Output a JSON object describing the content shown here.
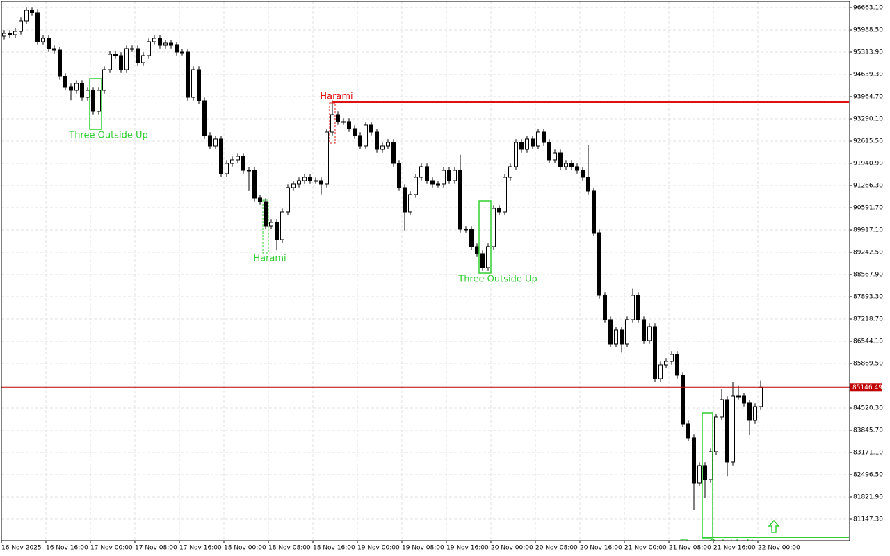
{
  "chart_data": {
    "type": "candlestick",
    "categories": [
      "16 Nov 2025",
      null,
      null,
      null,
      null,
      null,
      null,
      null,
      "16 Nov 16:00",
      null,
      null,
      null,
      null,
      null,
      null,
      null,
      "17 Nov 00:00",
      null,
      null,
      null,
      null,
      null,
      null,
      null,
      "17 Nov 08:00",
      null,
      null,
      null,
      null,
      null,
      null,
      null,
      "17 Nov 16:00",
      null,
      null,
      null,
      null,
      null,
      null,
      null,
      "18 Nov 00:00",
      null,
      null,
      null,
      null,
      null,
      null,
      null,
      "18 Nov 08:00",
      null,
      null,
      null,
      null,
      null,
      null,
      null,
      "18 Nov 16:00",
      null,
      null,
      null,
      null,
      null,
      null,
      null,
      "19 Nov 00:00",
      null,
      null,
      null,
      null,
      null,
      null,
      null,
      "19 Nov 08:00",
      null,
      null,
      null,
      null,
      null,
      null,
      null,
      "19 Nov 16:00",
      null,
      null,
      null,
      null,
      null,
      null,
      null,
      "20 Nov 00:00",
      null,
      null,
      null,
      null,
      null,
      null,
      null,
      "20 Nov 08:00",
      null,
      null,
      null,
      null,
      null,
      null,
      null,
      "20 Nov 16:00",
      null,
      null,
      null,
      null,
      null,
      null,
      null,
      "21 Nov 00:00",
      null,
      null,
      null,
      null,
      null,
      null,
      null,
      "21 Nov 08:00",
      null,
      null,
      null,
      null,
      null,
      null,
      null,
      "21 Nov 16:00",
      null,
      null,
      null,
      null,
      null,
      null,
      null,
      "22 Nov 00:00"
    ],
    "open": [
      95800,
      95883,
      95841,
      95946,
      96263,
      96579,
      96516,
      95630,
      95736,
      95419,
      95377,
      94576,
      94260,
      94155,
      94365,
      93944,
      94155,
      93522,
      94155,
      94787,
      95251,
      95209,
      94787,
      95419,
      95419,
      94998,
      95209,
      95630,
      95736,
      95525,
      95588,
      95525,
      95314,
      95314,
      93944,
      94787,
      93838,
      92784,
      92468,
      92679,
      91625,
      91941,
      92047,
      92152,
      91730,
      91730,
      90887,
      90782,
      90044,
      90149,
      89622,
      90466,
      91203,
      91309,
      91414,
      91520,
      91414,
      91414,
      91309,
      92890,
      93417,
      93206,
      93206,
      92995,
      92784,
      92468,
      93101,
      92890,
      92363,
      92468,
      92574,
      91941,
      91203,
      90466,
      90993,
      91520,
      91836,
      91414,
      91309,
      91309,
      91730,
      91414,
      91730,
      89939,
      89939,
      89412,
      89201,
      88779,
      89412,
      90571,
      90466,
      91520,
      91836,
      92574,
      92363,
      92679,
      92468,
      92890,
      92574,
      92047,
      92257,
      91836,
      91941,
      91836,
      91730,
      91520,
      91098,
      89833,
      87936,
      87198,
      86460,
      86882,
      86460,
      87198,
      87936,
      87198,
      86566,
      86987,
      85406,
      85828,
      85933,
      86144,
      85512,
      84036,
      83615,
      82244,
      82771,
      82350,
      83193,
      84247,
      84774,
      82877,
      84879,
      84879,
      84669,
      84142,
      84563
    ],
    "high": [
      95983,
      95983,
      96046,
      96363,
      96679,
      96679,
      96616,
      95836,
      95836,
      95519,
      95477,
      94676,
      94360,
      94465,
      94465,
      94255,
      94255,
      94255,
      94887,
      95351,
      95351,
      95309,
      95519,
      95519,
      95519,
      95309,
      95730,
      95836,
      95836,
      95688,
      95688,
      95625,
      95414,
      95414,
      94887,
      94887,
      93938,
      92884,
      92779,
      92779,
      92041,
      92147,
      92252,
      92252,
      91830,
      91830,
      90987,
      90882,
      90249,
      90249,
      90566,
      91303,
      91409,
      91514,
      91620,
      91620,
      91514,
      91514,
      92990,
      93850,
      93517,
      93306,
      93306,
      93095,
      92884,
      93201,
      93201,
      92990,
      92568,
      92674,
      92674,
      92041,
      91303,
      91093,
      91620,
      91936,
      91936,
      91514,
      91409,
      91830,
      91830,
      91830,
      92200,
      90039,
      90039,
      89512,
      89301,
      89512,
      90671,
      90671,
      91620,
      91936,
      92674,
      92674,
      92779,
      92779,
      92990,
      92990,
      92674,
      92357,
      92357,
      92041,
      92041,
      91936,
      91830,
      92500,
      91198,
      89933,
      88036,
      87298,
      86982,
      86982,
      87298,
      88136,
      88036,
      87298,
      87087,
      87087,
      85928,
      86033,
      86244,
      86244,
      85612,
      84136,
      83715,
      82871,
      82871,
      83293,
      84347,
      85100,
      84874,
      85300,
      85200,
      84979,
      84769,
      84663,
      85350
    ],
    "low": [
      95700,
      95741,
      95741,
      95846,
      96163,
      96416,
      95530,
      95530,
      95319,
      95277,
      94476,
      94160,
      93855,
      94055,
      93844,
      93844,
      93422,
      93422,
      94055,
      94687,
      95109,
      94687,
      94687,
      95319,
      94898,
      94898,
      95109,
      95530,
      95425,
      95425,
      95425,
      95214,
      95214,
      93844,
      93844,
      93738,
      92684,
      92368,
      92368,
      91525,
      91525,
      91841,
      91947,
      91630,
      91100,
      90787,
      90682,
      89944,
      89944,
      89300,
      89522,
      90366,
      91103,
      91209,
      91314,
      91314,
      91314,
      91000,
      91209,
      92790,
      93106,
      93106,
      92895,
      92684,
      92368,
      92368,
      92790,
      92263,
      92263,
      92368,
      91841,
      91103,
      89900,
      90366,
      90893,
      91420,
      91314,
      91209,
      91209,
      91209,
      91314,
      91314,
      89839,
      89839,
      89312,
      89101,
      88679,
      88679,
      89312,
      90366,
      90366,
      91420,
      91736,
      92263,
      92263,
      92368,
      92368,
      92474,
      91947,
      91947,
      91736,
      91736,
      91736,
      91630,
      91420,
      90998,
      89733,
      87836,
      87098,
      86360,
      86360,
      86200,
      86360,
      87098,
      87098,
      86466,
      86466,
      85306,
      85306,
      85728,
      85833,
      85412,
      83936,
      83515,
      81422,
      82144,
      81800,
      82250,
      83093,
      84147,
      82450,
      82777,
      84779,
      84569,
      83700,
      84042,
      84463
    ],
    "close": [
      95883,
      95841,
      95946,
      96263,
      96579,
      96516,
      95630,
      95736,
      95419,
      95377,
      94576,
      94260,
      94155,
      94365,
      93944,
      94155,
      93522,
      94155,
      94787,
      95251,
      95209,
      94787,
      95419,
      95419,
      94998,
      95209,
      95630,
      95736,
      95525,
      95588,
      95525,
      95314,
      95314,
      93944,
      94787,
      93838,
      92784,
      92468,
      92679,
      91625,
      91941,
      92047,
      92152,
      91730,
      91730,
      90887,
      90782,
      90044,
      90149,
      89622,
      90466,
      91203,
      91309,
      91414,
      91520,
      91414,
      91414,
      91309,
      92890,
      93417,
      93206,
      93206,
      92995,
      92784,
      92468,
      93101,
      92890,
      92363,
      92468,
      92574,
      91941,
      91203,
      90466,
      90993,
      91520,
      91836,
      91414,
      91309,
      91309,
      91730,
      91414,
      91730,
      89939,
      89939,
      89412,
      89201,
      88779,
      89412,
      90571,
      90466,
      91520,
      91836,
      92574,
      92363,
      92679,
      92468,
      92890,
      92574,
      92047,
      92257,
      91836,
      91941,
      91836,
      91730,
      91520,
      91098,
      89833,
      87936,
      87198,
      86460,
      86882,
      86460,
      87198,
      87936,
      87198,
      86566,
      86987,
      85406,
      85828,
      85933,
      86144,
      85512,
      84036,
      83615,
      82244,
      82771,
      82350,
      83193,
      84247,
      84774,
      82877,
      84879,
      84879,
      84669,
      84142,
      84563,
      85146.49
    ],
    "ylim": [
      80493.8,
      96852.8
    ],
    "yticks": [
      {
        "value": 96663.1,
        "label": "96663.10"
      },
      {
        "value": 95988.5,
        "label": "95988.50"
      },
      {
        "value": 95313.9,
        "label": "95313.90"
      },
      {
        "value": 94639.3,
        "label": "94639.30"
      },
      {
        "value": 93964.7,
        "label": "93964.70"
      },
      {
        "value": 93290.1,
        "label": "93290.10"
      },
      {
        "value": 92615.5,
        "label": "92615.50"
      },
      {
        "value": 91940.9,
        "label": "91940.90"
      },
      {
        "value": 91266.3,
        "label": "91266.30"
      },
      {
        "value": 90591.7,
        "label": "90591.70"
      },
      {
        "value": 89917.1,
        "label": "89917.10"
      },
      {
        "value": 89242.5,
        "label": "89242.50"
      },
      {
        "value": 88567.9,
        "label": "88567.90"
      },
      {
        "value": 87893.3,
        "label": "87893.30"
      },
      {
        "value": 87218.7,
        "label": "87218.70"
      },
      {
        "value": 86544.1,
        "label": "86544.10"
      },
      {
        "value": 85869.5,
        "label": "85869.50"
      },
      {
        "value": 84520.3,
        "label": "84520.30"
      },
      {
        "value": 83845.7,
        "label": "83845.70"
      },
      {
        "value": 83171.1,
        "label": "83171.10"
      },
      {
        "value": 82496.5,
        "label": "82496.50"
      },
      {
        "value": 81821.9,
        "label": "81821.90"
      },
      {
        "value": 81147.3,
        "label": "81147.30"
      }
    ],
    "grid": true,
    "current_price": 85146.49,
    "up_color": "#ffffff",
    "down_color": "#000000",
    "annotations": [
      "Three Outside Up",
      "Harami",
      "Harami",
      "Three Outside Up",
      "Three Outside Up"
    ]
  }
}
